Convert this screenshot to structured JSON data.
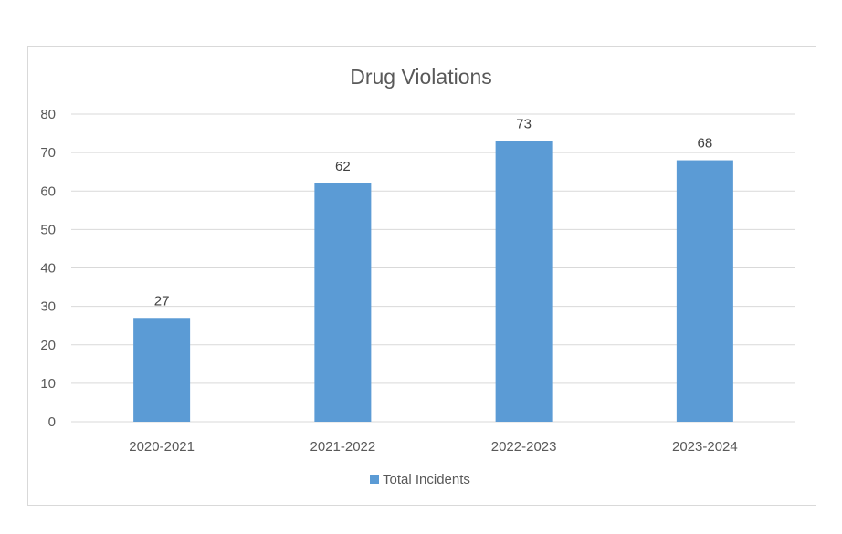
{
  "chart_data": {
    "type": "bar",
    "title": "Drug Violations",
    "categories": [
      "2020-2021",
      "2021-2022",
      "2022-2023",
      "2023-2024"
    ],
    "series": [
      {
        "name": "Total Incidents",
        "values": [
          27,
          62,
          73,
          68
        ],
        "color": "#5b9bd5"
      }
    ],
    "ylim": [
      0,
      80
    ],
    "yticks": [
      0,
      10,
      20,
      30,
      40,
      50,
      60,
      70,
      80
    ],
    "grid": true,
    "data_labels": true,
    "legend_position": "bottom"
  }
}
